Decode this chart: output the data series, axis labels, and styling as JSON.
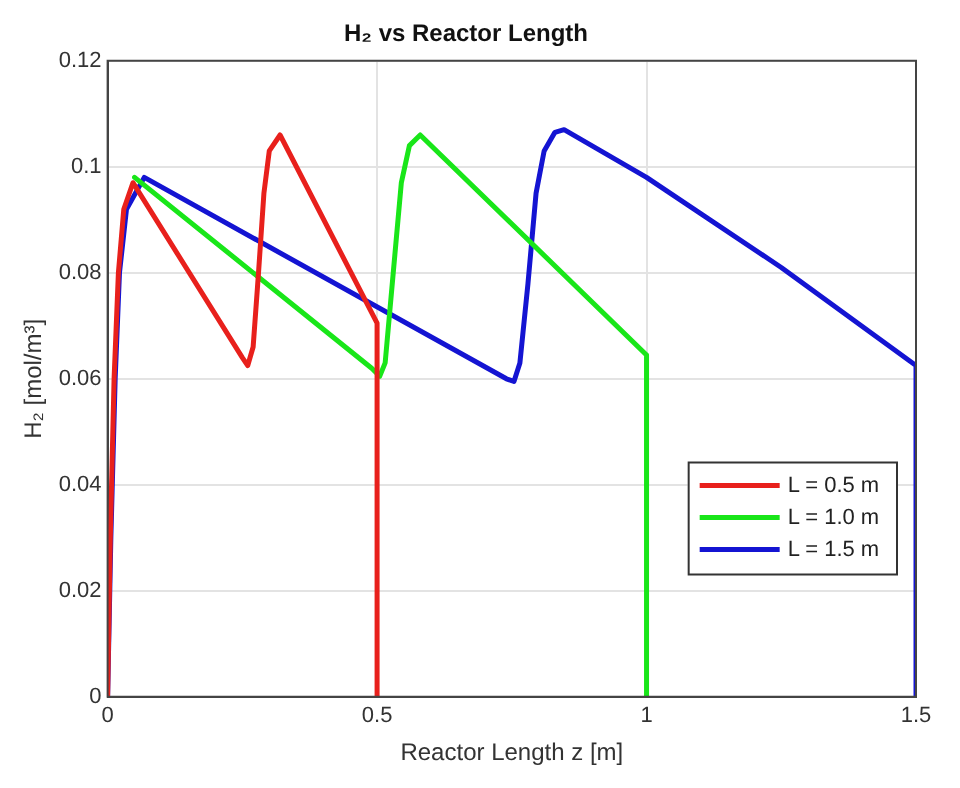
{
  "chart_data": {
    "type": "line",
    "title": "H₂ vs Reactor Length",
    "xlabel": "Reactor Length z [m]",
    "ylabel": "H₂ [mol/m³]",
    "xlim": [
      0,
      1.5
    ],
    "xticks": [
      0,
      0.5,
      1,
      1.5
    ],
    "ylim": [
      0,
      0.12
    ],
    "yticks": [
      0,
      0.02,
      0.04,
      0.06,
      0.08,
      0.1,
      0.12
    ],
    "grid": true,
    "legend": "bottom right",
    "marker": "none",
    "line_style": "solid",
    "series": [
      {
        "name": "L = 0.5 m",
        "color": "#e8201c",
        "x": [
          0,
          0.005,
          0.012,
          0.02,
          0.03,
          0.047,
          0.25,
          0.26,
          0.27,
          0.28,
          0.29,
          0.3,
          0.32,
          0.5,
          0.5
        ],
        "values": [
          0,
          0.03,
          0.06,
          0.08,
          0.092,
          0.097,
          0.064,
          0.0625,
          0.066,
          0.08,
          0.095,
          0.103,
          0.106,
          0.0705,
          0
        ]
      },
      {
        "name": "L = 1.0 m",
        "color": "#19e619",
        "x": [
          0.05,
          0.49,
          0.505,
          0.515,
          0.53,
          0.545,
          0.56,
          0.58,
          1,
          1
        ],
        "values": [
          0.098,
          0.062,
          0.0605,
          0.063,
          0.08,
          0.097,
          0.104,
          0.106,
          0.0645,
          0
        ]
      },
      {
        "name": "L = 1.5 m",
        "color": "#1414d2",
        "x": [
          0,
          0.006,
          0.014,
          0.022,
          0.035,
          0.068,
          0.74,
          0.754,
          0.765,
          0.78,
          0.795,
          0.81,
          0.83,
          0.847,
          1,
          1.25,
          1.5,
          1.5
        ],
        "values": [
          0,
          0.03,
          0.06,
          0.08,
          0.092,
          0.098,
          0.06,
          0.0595,
          0.063,
          0.078,
          0.095,
          0.103,
          0.1065,
          0.107,
          0.098,
          0.081,
          0.0625,
          0
        ]
      }
    ]
  }
}
